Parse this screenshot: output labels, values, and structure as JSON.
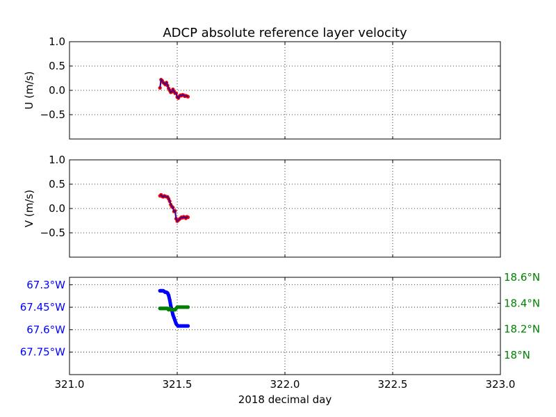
{
  "title": "ADCP absolute reference layer velocity",
  "colors": {
    "u_v_points": "#ff0000",
    "u_v_line": "#4b0082",
    "longitude": "#0000ff",
    "latitude": "#008000",
    "grid": "#000000"
  },
  "chart_data": [
    {
      "id": "u",
      "type": "line",
      "ylabel": "U (m/s)",
      "xlim": [
        321.0,
        323.0
      ],
      "ylim": [
        -1.0,
        1.0
      ],
      "yticks": [
        1.0,
        0.5,
        0.0,
        -0.5
      ],
      "ytick_labels": [
        "1.0",
        "0.5",
        "0.0",
        "−0.5"
      ],
      "grid": true,
      "series": [
        {
          "x": [
            321.42,
            321.425,
            321.43,
            321.435,
            321.44,
            321.445,
            321.45,
            321.455,
            321.46,
            321.465,
            321.47,
            321.475,
            321.48,
            321.485,
            321.49,
            321.495,
            321.5,
            321.505,
            321.51,
            321.515,
            321.52,
            321.525,
            321.53,
            321.535,
            321.54,
            321.545,
            321.55
          ],
          "y": [
            0.05,
            0.22,
            0.2,
            0.16,
            0.14,
            0.12,
            0.16,
            0.1,
            0.04,
            0.0,
            -0.04,
            -0.03,
            0.02,
            -0.02,
            -0.06,
            -0.06,
            -0.14,
            -0.16,
            -0.12,
            -0.1,
            -0.11,
            -0.09,
            -0.1,
            -0.12,
            -0.11,
            -0.12,
            -0.13
          ]
        }
      ]
    },
    {
      "id": "v",
      "type": "line",
      "ylabel": "V (m/s)",
      "xlim": [
        321.0,
        323.0
      ],
      "ylim": [
        -1.0,
        1.0
      ],
      "yticks": [
        1.0,
        0.5,
        0.0,
        -0.5
      ],
      "ytick_labels": [
        "1.0",
        "0.5",
        "0.0",
        "−0.5"
      ],
      "grid": true,
      "series": [
        {
          "x": [
            321.42,
            321.425,
            321.43,
            321.435,
            321.44,
            321.445,
            321.45,
            321.455,
            321.46,
            321.465,
            321.47,
            321.475,
            321.48,
            321.485,
            321.49,
            321.495,
            321.5,
            321.505,
            321.51,
            321.515,
            321.52,
            321.525,
            321.53,
            321.535,
            321.54,
            321.545,
            321.55
          ],
          "y": [
            0.26,
            0.28,
            0.25,
            0.24,
            0.26,
            0.25,
            0.24,
            0.24,
            0.2,
            0.15,
            0.08,
            0.04,
            0.02,
            -0.06,
            -0.05,
            -0.21,
            -0.26,
            -0.24,
            -0.22,
            -0.2,
            -0.18,
            -0.19,
            -0.17,
            -0.18,
            -0.2,
            -0.17,
            -0.18
          ]
        }
      ]
    },
    {
      "id": "position",
      "type": "scatter",
      "xlabel": "2018 decimal day",
      "xlim": [
        321.0,
        323.0
      ],
      "xticks": [
        321.0,
        321.5,
        322.0,
        322.5,
        323.0
      ],
      "xtick_labels": [
        "321.0",
        "321.5",
        "322.0",
        "322.5",
        "323.0"
      ],
      "grid": true,
      "left_axis": {
        "ylim": [
          -67.9,
          -67.25
        ],
        "ytick_values": [
          -67.3,
          -67.45,
          -67.6,
          -67.75
        ],
        "ytick_labels": [
          "67.3°W",
          "67.45°W",
          "67.6°W",
          "67.75°W"
        ]
      },
      "right_axis": {
        "ylim": [
          17.85,
          18.6
        ],
        "ytick_values": [
          18.6,
          18.4,
          18.2,
          18.0
        ],
        "ytick_labels": [
          "18.6°N",
          "18.4°N",
          "18.2°N",
          "18°N"
        ]
      },
      "series": [
        {
          "axis": "left",
          "x": [
            321.42,
            321.425,
            321.43,
            321.435,
            321.44,
            321.445,
            321.45,
            321.455,
            321.46,
            321.465,
            321.47,
            321.475,
            321.48,
            321.485,
            321.49,
            321.495,
            321.5,
            321.505,
            321.51,
            321.515,
            321.52,
            321.525,
            321.53,
            321.535,
            321.54,
            321.545,
            321.55
          ],
          "y": [
            -67.34,
            -67.34,
            -67.34,
            -67.34,
            -67.345,
            -67.35,
            -67.35,
            -67.355,
            -67.37,
            -67.4,
            -67.44,
            -67.47,
            -67.5,
            -67.52,
            -67.54,
            -67.56,
            -67.57,
            -67.575,
            -67.575,
            -67.575,
            -67.575,
            -67.575,
            -67.575,
            -67.575,
            -67.575,
            -67.575,
            -67.575
          ]
        },
        {
          "axis": "right",
          "x": [
            321.42,
            321.425,
            321.43,
            321.435,
            321.44,
            321.445,
            321.45,
            321.455,
            321.46,
            321.465,
            321.47,
            321.475,
            321.48,
            321.485,
            321.49,
            321.495,
            321.5,
            321.505,
            321.51,
            321.515,
            321.52,
            321.525,
            321.53,
            321.535,
            321.54,
            321.545,
            321.55
          ],
          "y": [
            18.36,
            18.36,
            18.36,
            18.36,
            18.36,
            18.36,
            18.36,
            18.36,
            18.35,
            18.36,
            18.35,
            18.35,
            18.35,
            18.35,
            18.35,
            18.36,
            18.37,
            18.37,
            18.37,
            18.37,
            18.37,
            18.37,
            18.37,
            18.37,
            18.37,
            18.37,
            18.37
          ]
        }
      ]
    }
  ]
}
